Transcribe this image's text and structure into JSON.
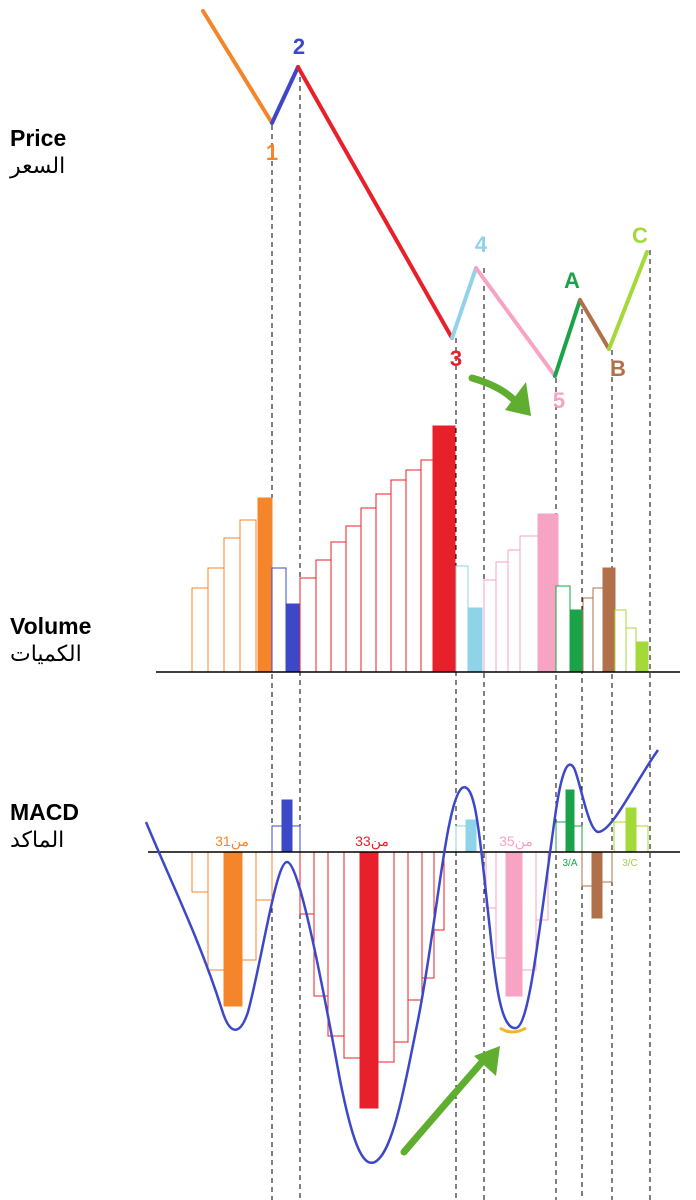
{
  "sections": {
    "price": {
      "en": "Price",
      "ar": "السعر"
    },
    "volume": {
      "en": "Volume",
      "ar": "الكميات"
    },
    "macd": {
      "en": "MACD",
      "ar": "الماكد"
    }
  },
  "colors": {
    "wave1": "#f5852b",
    "wave2": "#3c48c8",
    "wave3": "#e8202a",
    "wave4": "#8fd3e8",
    "wave5": "#f6a3c4",
    "waveA": "#1ba34a",
    "waveB": "#b0704a",
    "waveC": "#a4d93a",
    "macd_line": "#3c48c8",
    "arrow": "#5fae2f",
    "divergence": "#f2b52a"
  },
  "wave_labels": [
    "1",
    "2",
    "3",
    "4",
    "5",
    "A",
    "B",
    "C"
  ],
  "macd_labels": {
    "w1": "3من1",
    "w3": "3من3",
    "w5": "3من5",
    "wA": "3/A",
    "wC": "3/C"
  }
}
